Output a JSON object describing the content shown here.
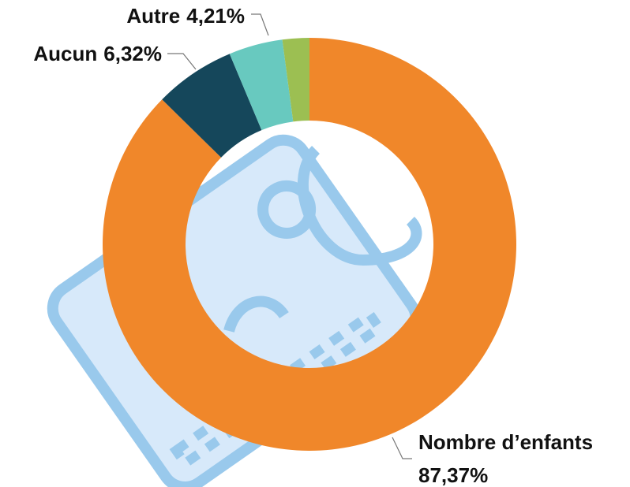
{
  "chart_data": {
    "type": "donut",
    "categories": [
      "Nombre d’enfants",
      "Aucun",
      "Autre",
      null
    ],
    "values": [
      87.37,
      6.32,
      4.21,
      2.1
    ],
    "value_labels": [
      "87,37%",
      "6,32%",
      "4,21%",
      null
    ],
    "colors": [
      "#f0872a",
      "#15475b",
      "#68c9bf",
      "#9cbf52"
    ]
  }
}
